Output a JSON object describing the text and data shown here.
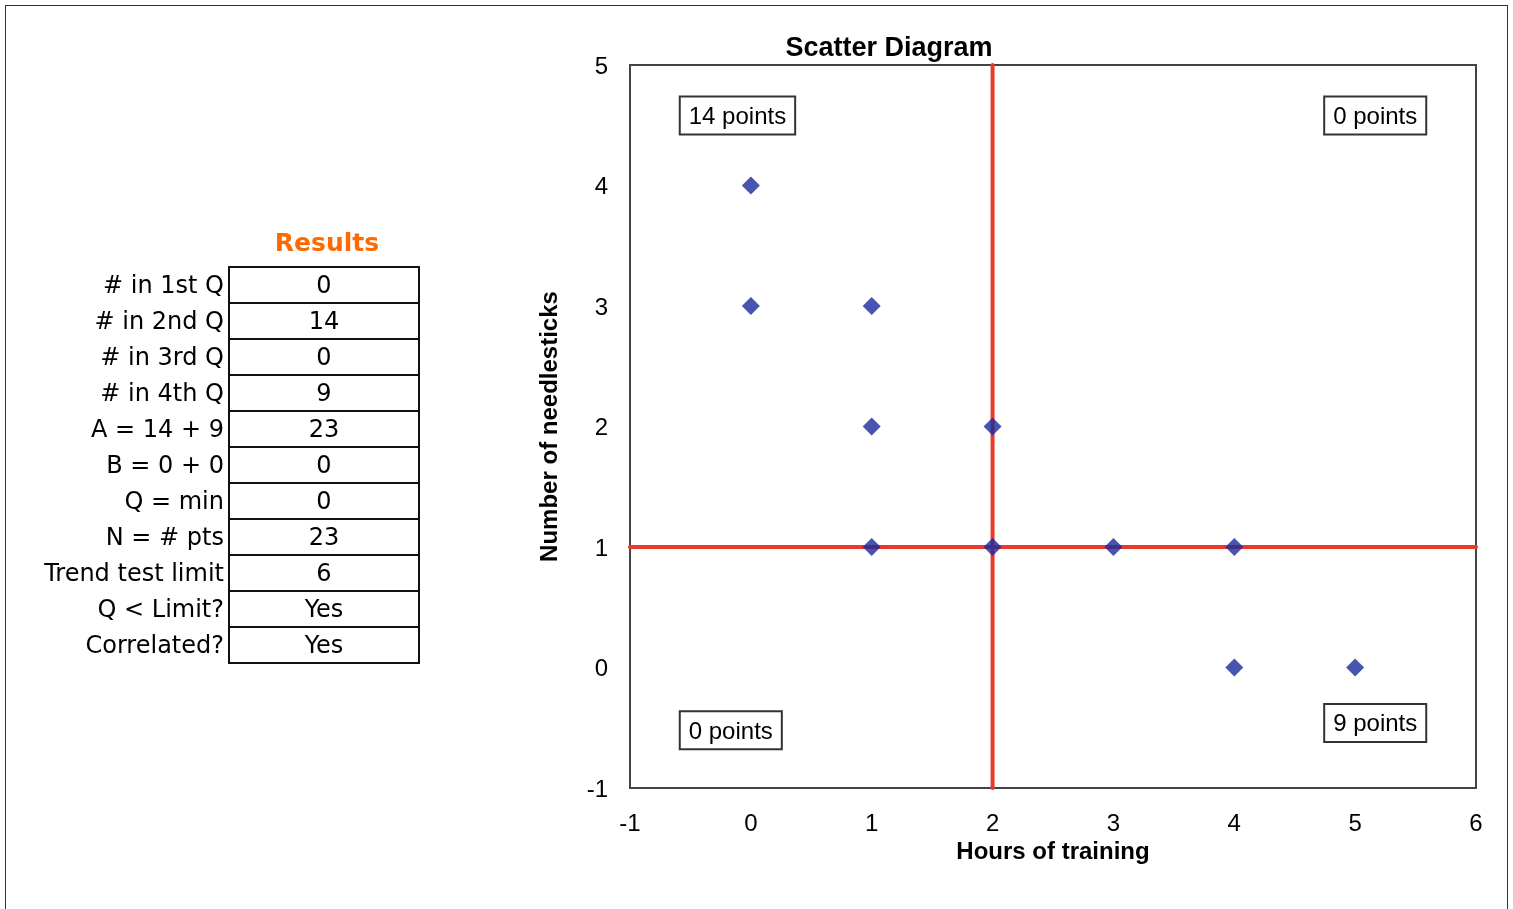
{
  "chart_data": [
    {
      "type": "other",
      "title": "Results",
      "categories": [
        "# in 1st Q",
        "# in 2nd Q",
        "# in 3rd Q",
        "# in 4th Q",
        "A = 14 + 9",
        "B = 0 + 0",
        "Q = min",
        "N = # pts",
        "Trend test limit",
        "Q < Limit?",
        "Correlated?"
      ],
      "value_labels": [
        "0",
        "14",
        "0",
        "9",
        "23",
        "0",
        "0",
        "23",
        "6",
        "Yes",
        "Yes"
      ]
    },
    {
      "type": "scatter",
      "title": "Scatter Diagram",
      "xlabel": "Hours of training",
      "ylabel": "Number of needlesticks",
      "x": [
        0,
        0,
        1,
        1,
        2,
        1,
        2,
        3,
        4,
        4,
        5
      ],
      "values": [
        4,
        3,
        3,
        2,
        2,
        1,
        1,
        1,
        1,
        0,
        0
      ],
      "color": "#1a2a9c",
      "marker": "diamond",
      "xlim": [
        -1,
        6
      ],
      "xticks": [
        -1,
        0,
        1,
        2,
        3,
        4,
        5,
        6
      ],
      "ylim": [
        -1,
        5
      ],
      "yticks": [
        -1,
        0,
        1,
        2,
        3,
        4,
        5
      ],
      "grid": false,
      "ref_lines": [
        {
          "axis": "x",
          "value": 2,
          "color": "#e8392b"
        },
        {
          "axis": "y",
          "value": 1,
          "color": "#e8392b"
        }
      ],
      "annotations": [
        "14 points",
        "0 points",
        "0 points",
        "9 points"
      ]
    }
  ]
}
